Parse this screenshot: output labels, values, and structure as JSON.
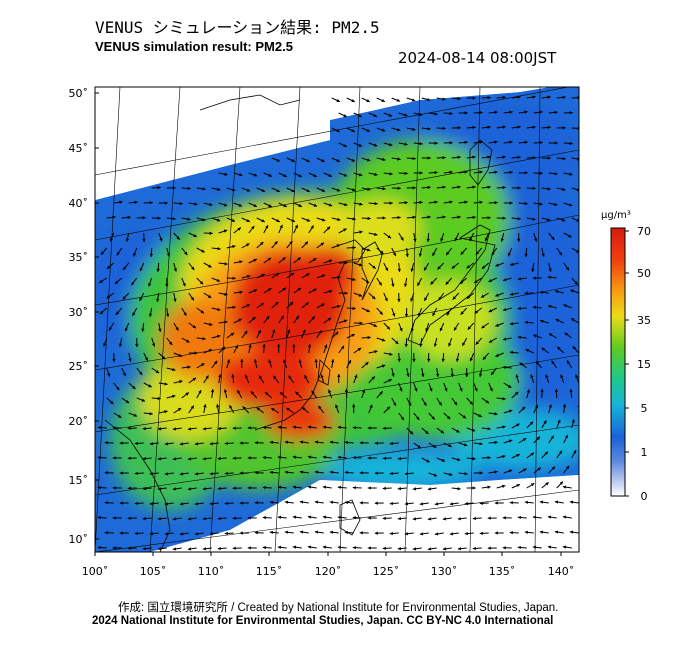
{
  "header": {
    "title_jp": "VENUS シミュレーション結果: PM2.5",
    "title_en": "VENUS simulation result: PM2.5",
    "timestamp": "2024-08-14 08:00JST"
  },
  "map": {
    "lat_labels": [
      "50˚",
      "45˚",
      "40˚",
      "35˚",
      "30˚",
      "25˚",
      "20˚",
      "15˚",
      "10˚"
    ],
    "lon_labels": [
      "100˚",
      "105˚",
      "110˚",
      "115˚",
      "120˚",
      "125˚",
      "130˚",
      "135˚",
      "140˚"
    ],
    "variable": "PM2.5"
  },
  "colorbar": {
    "unit": "μg/m³",
    "ticks": [
      "70",
      "50",
      "35",
      "15",
      "5",
      "1",
      "0"
    ],
    "colors": [
      "#d61b0f",
      "#f0400e",
      "#f8a012",
      "#eadc18",
      "#5ccb22",
      "#1ec88a",
      "#18b4d8",
      "#1a62d8",
      "#5a8ae0",
      "#b4c6ee",
      "#ffffff"
    ]
  },
  "footer": {
    "credit": "作成: 国立環境研究所 / Created by National Institute for Environmental Studies, Japan.",
    "copyright": "2024 National Institute for Environmental Studies, Japan. CC BY-NC 4.0 International"
  }
}
